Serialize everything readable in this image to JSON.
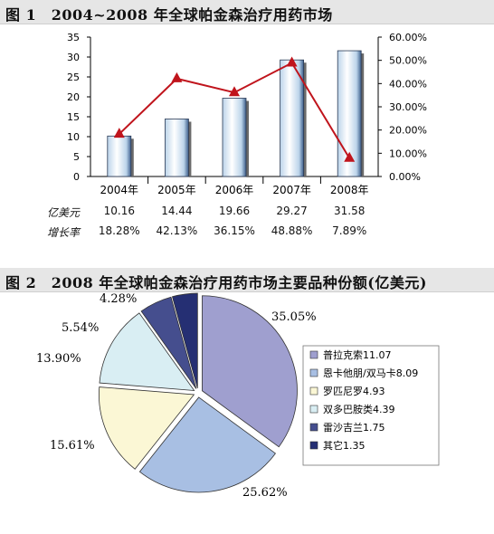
{
  "figure1": {
    "title": "图 1　2004~2008 年全球帕金森治疗用药市场",
    "chart_data": {
      "type": "bar",
      "categories": [
        "2004年",
        "2005年",
        "2006年",
        "2007年",
        "2008年"
      ],
      "series": [
        {
          "values": [
            10.16,
            14.44,
            19.66,
            29.27,
            31.58
          ]
        },
        {
          "values": [
            18.28,
            42.13,
            36.15,
            48.88,
            7.89
          ]
        }
      ],
      "ylim": [
        0,
        35
      ],
      "yticks": [
        "0",
        "5",
        "10",
        "15",
        "20",
        "25",
        "30",
        "35"
      ],
      "ylim_right": [
        0,
        60
      ],
      "yticks_right": [
        "0.00%",
        "10.00%",
        "20.00%",
        "30.00%",
        "40.00%",
        "50.00%",
        "60.00%"
      ],
      "table": {
        "row1_label": "亿美元",
        "row1": [
          "10.16",
          "14.44",
          "19.66",
          "29.27",
          "31.58"
        ],
        "row2_label": "增长率",
        "row2": [
          "18.28%",
          "42.13%",
          "36.15%",
          "48.88%",
          "7.89%"
        ]
      },
      "colors": {
        "bar_light": "#ffffff",
        "bar_mid": "#bcd4ea",
        "bar_dark": "#3d5f8c",
        "line": "#c0141c"
      }
    }
  },
  "figure2": {
    "title": "图 2　2008 年全球帕金森治疗用药市场主要品种份额(亿美元)",
    "chart_data": {
      "type": "pie",
      "labels": [
        "普拉克索11.07",
        "恩卡他朋/双马卡8.09",
        "罗匹尼罗4.93",
        "双多巴胺类4.39",
        "雷沙吉兰1.75",
        "其它1.35"
      ],
      "values": [
        11.07,
        8.09,
        4.93,
        4.39,
        1.75,
        1.35
      ],
      "percent_labels": [
        "35.05%",
        "25.62%",
        "15.61%",
        "13.90%",
        "5.54%",
        "4.28%"
      ],
      "colors": [
        "#9f9fcf",
        "#a8bfe3",
        "#fbf7d5",
        "#d9eef3",
        "#454e8e",
        "#252f73"
      ],
      "legend_position": "right"
    }
  }
}
